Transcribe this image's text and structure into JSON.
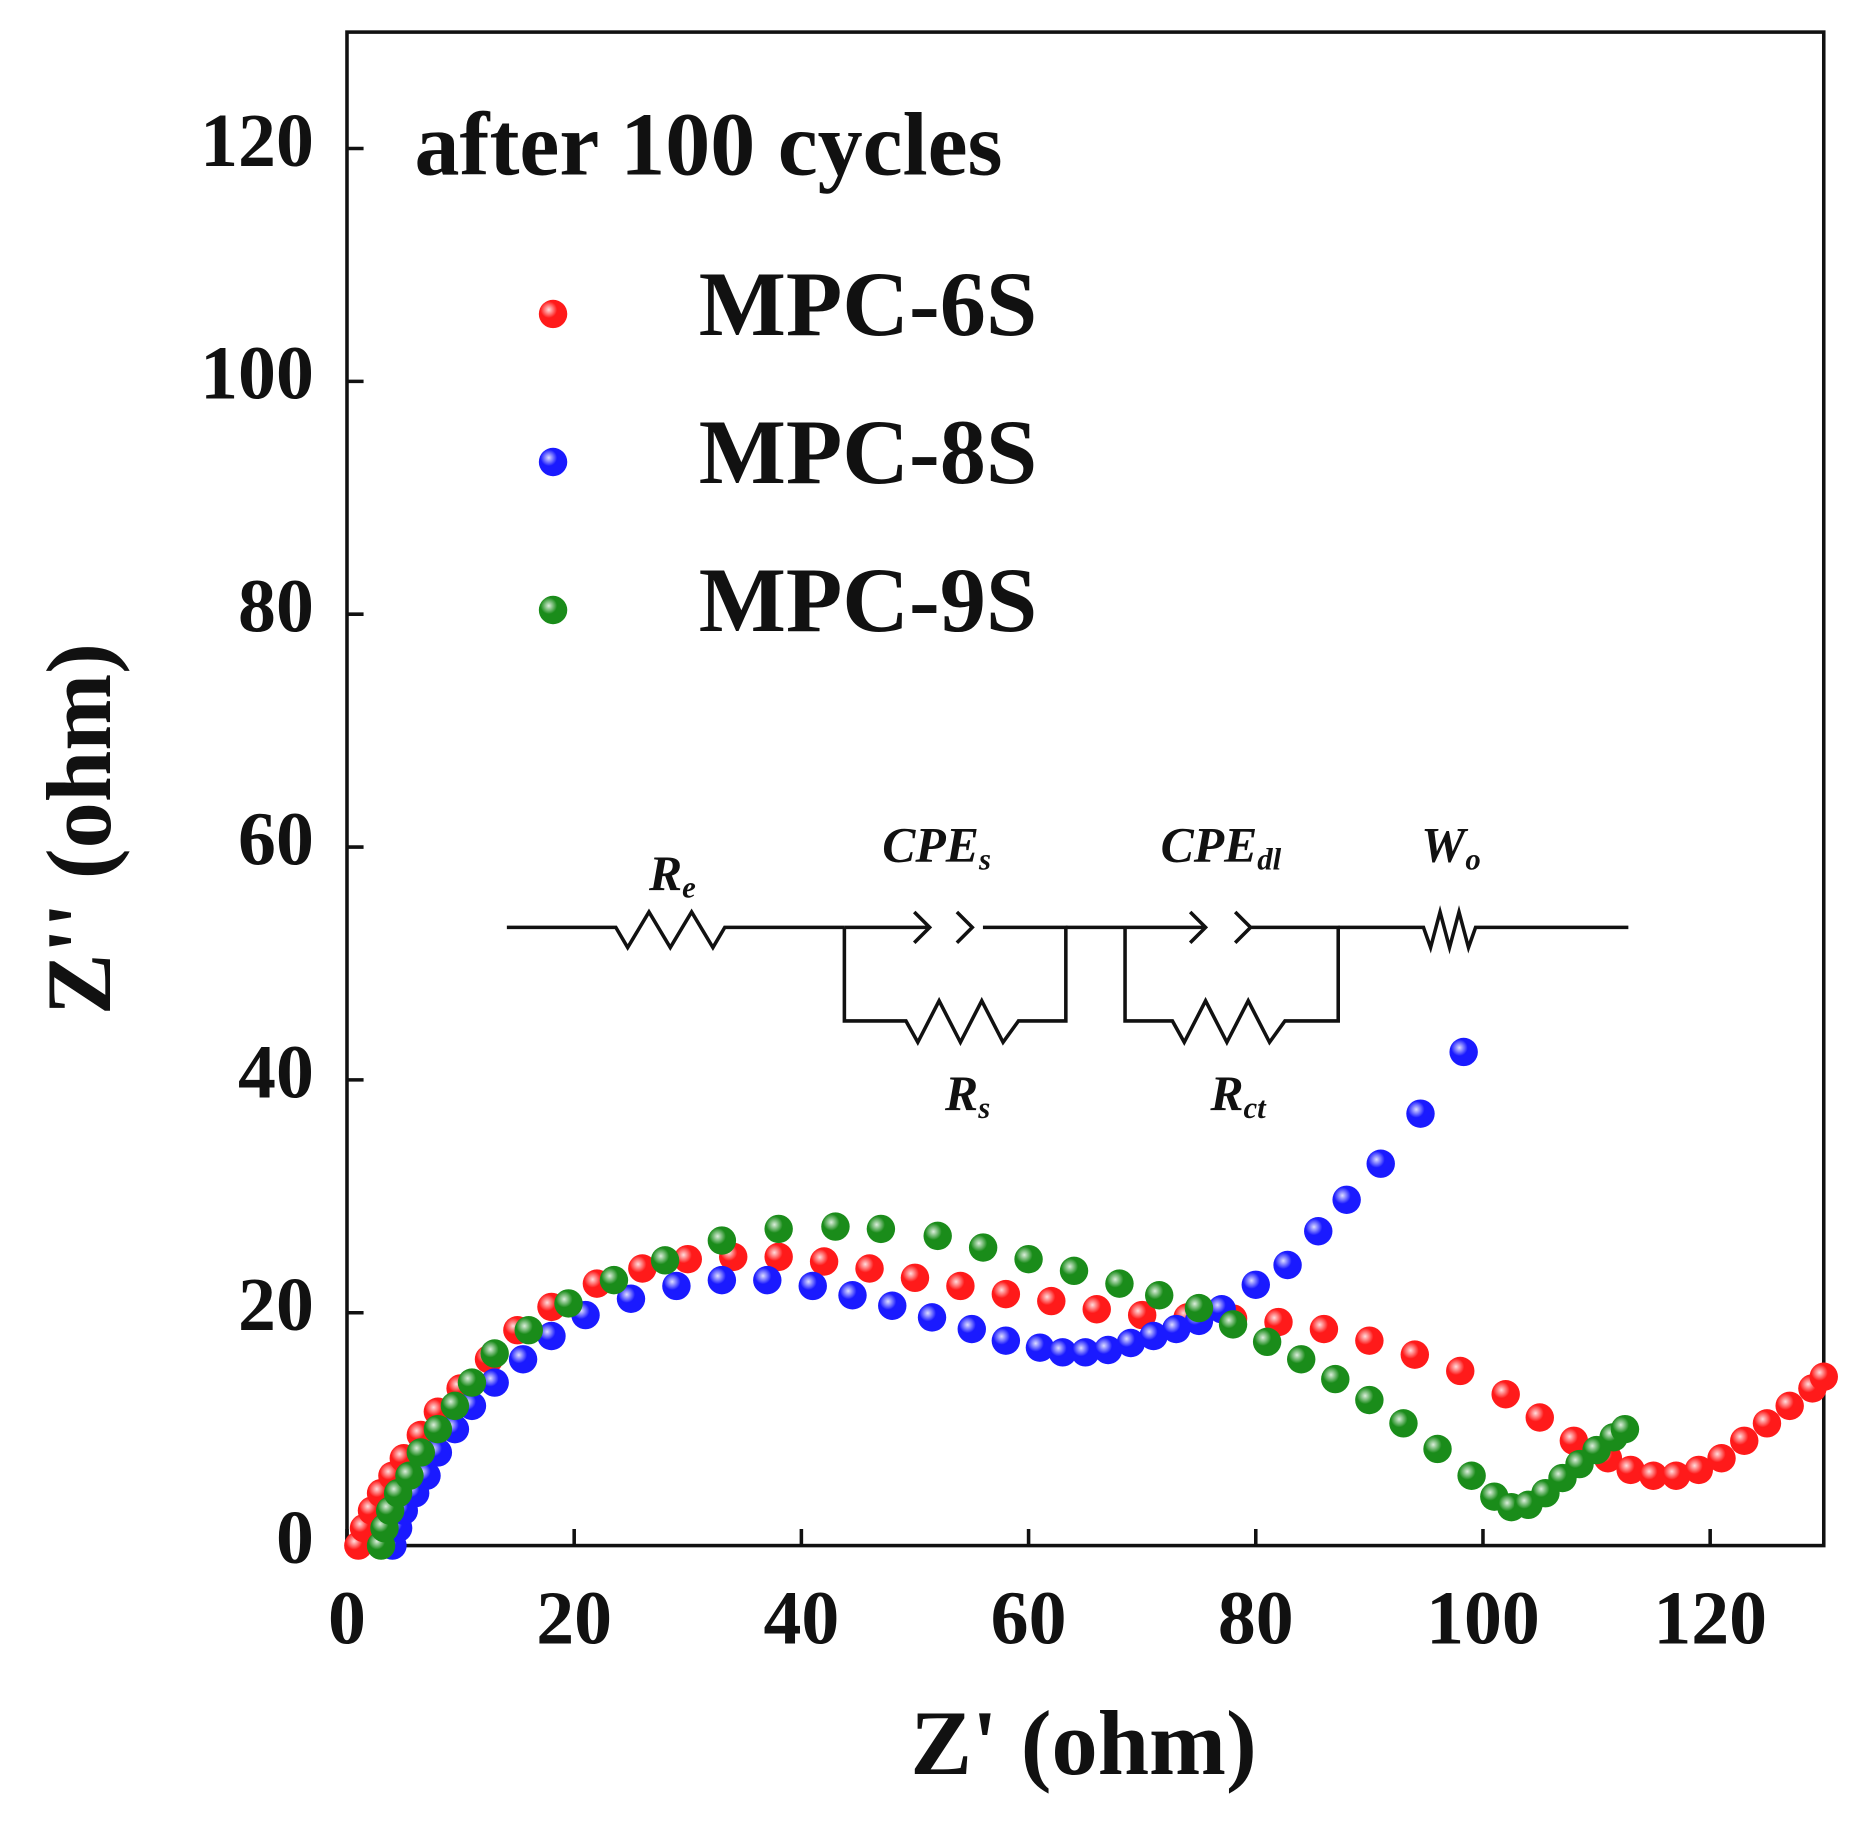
{
  "chart_data": {
    "type": "scatter",
    "title": "after 100 cycles",
    "x_label": "Z' (ohm)",
    "y_label": "Z'' (ohm)",
    "xlim": [
      0,
      130
    ],
    "ylim": [
      0,
      130
    ],
    "xticks": [
      0,
      20,
      40,
      60,
      80,
      100,
      120
    ],
    "yticks": [
      0,
      20,
      40,
      60,
      80,
      100,
      120
    ],
    "legend": "upper left",
    "series": [
      {
        "name": "MPC-6S",
        "color": "#ff1a1a",
        "x": [
          1,
          1.5,
          2.2,
          3,
          4,
          5,
          6.5,
          8,
          10,
          12.5,
          15,
          18,
          22,
          26,
          30,
          34,
          38,
          42,
          46,
          50,
          54,
          58,
          62,
          66,
          70,
          74,
          78,
          82,
          86,
          90,
          94,
          98,
          102,
          105,
          108,
          111,
          113,
          115,
          117,
          119,
          121,
          123,
          125,
          127,
          129,
          130
        ],
        "values": [
          0,
          1.5,
          3,
          4.5,
          6,
          7.5,
          9.5,
          11.5,
          13.5,
          16,
          18.5,
          20.5,
          22.5,
          23.8,
          24.6,
          24.8,
          24.8,
          24.4,
          23.8,
          23,
          22.3,
          21.6,
          21,
          20.3,
          19.8,
          19.6,
          19.5,
          19.2,
          18.6,
          17.6,
          16.4,
          15,
          13,
          11,
          9,
          7.5,
          6.5,
          6,
          6,
          6.5,
          7.5,
          9,
          10.5,
          12,
          13.5,
          14.5
        ]
      },
      {
        "name": "MPC-8S",
        "color": "#1a1aff",
        "x": [
          4,
          4.5,
          5,
          6,
          7,
          8,
          9.5,
          11,
          13,
          15.5,
          18,
          21,
          25,
          29,
          33,
          37,
          41,
          44.5,
          48,
          51.5,
          55,
          58,
          61,
          63,
          65,
          67,
          69,
          71,
          73,
          75,
          77,
          80,
          82.8,
          85.5,
          88,
          91,
          94.5,
          98.3
        ],
        "values": [
          0,
          1.5,
          3,
          4.5,
          6,
          8,
          10,
          12,
          14,
          16,
          18,
          19.8,
          21.2,
          22.3,
          22.8,
          22.8,
          22.3,
          21.5,
          20.6,
          19.6,
          18.6,
          17.6,
          17,
          16.6,
          16.6,
          16.8,
          17.4,
          18,
          18.6,
          19.3,
          20.3,
          22.4,
          24.1,
          27,
          29.7,
          32.8,
          37.1,
          42.4
        ]
      },
      {
        "name": "MPC-9S",
        "color": "#1a8c1a",
        "x": [
          3,
          3.3,
          3.8,
          4.5,
          5.5,
          6.5,
          8,
          9.5,
          11,
          13,
          16,
          19.5,
          23.5,
          28,
          33,
          38,
          43,
          47,
          52,
          56,
          60,
          64,
          68,
          71.5,
          75,
          78,
          81,
          84,
          87,
          90,
          93,
          96,
          99,
          101,
          102.5,
          104,
          105.5,
          107,
          108.5,
          110,
          111.5,
          112.5
        ],
        "values": [
          0,
          1.5,
          3,
          4.5,
          6,
          8,
          10,
          12,
          14,
          16.5,
          18.5,
          20.8,
          22.8,
          24.5,
          26.2,
          27.2,
          27.4,
          27.2,
          26.6,
          25.6,
          24.6,
          23.6,
          22.5,
          21.5,
          20.4,
          19,
          17.5,
          16,
          14.3,
          12.5,
          10.5,
          8.3,
          6,
          4.2,
          3.3,
          3.5,
          4.5,
          5.8,
          7,
          8.2,
          9.3,
          10
        ]
      }
    ]
  },
  "inset": {
    "re": {
      "main": "R",
      "sub": "e"
    },
    "cpes": {
      "main": "CPE",
      "sub": "s"
    },
    "cpedl": {
      "main": "CPE",
      "sub": "dl"
    },
    "wo": {
      "main": "W",
      "sub": "o"
    },
    "rs": {
      "main": "R",
      "sub": "s"
    },
    "rct": {
      "main": "R",
      "sub": "ct"
    }
  }
}
